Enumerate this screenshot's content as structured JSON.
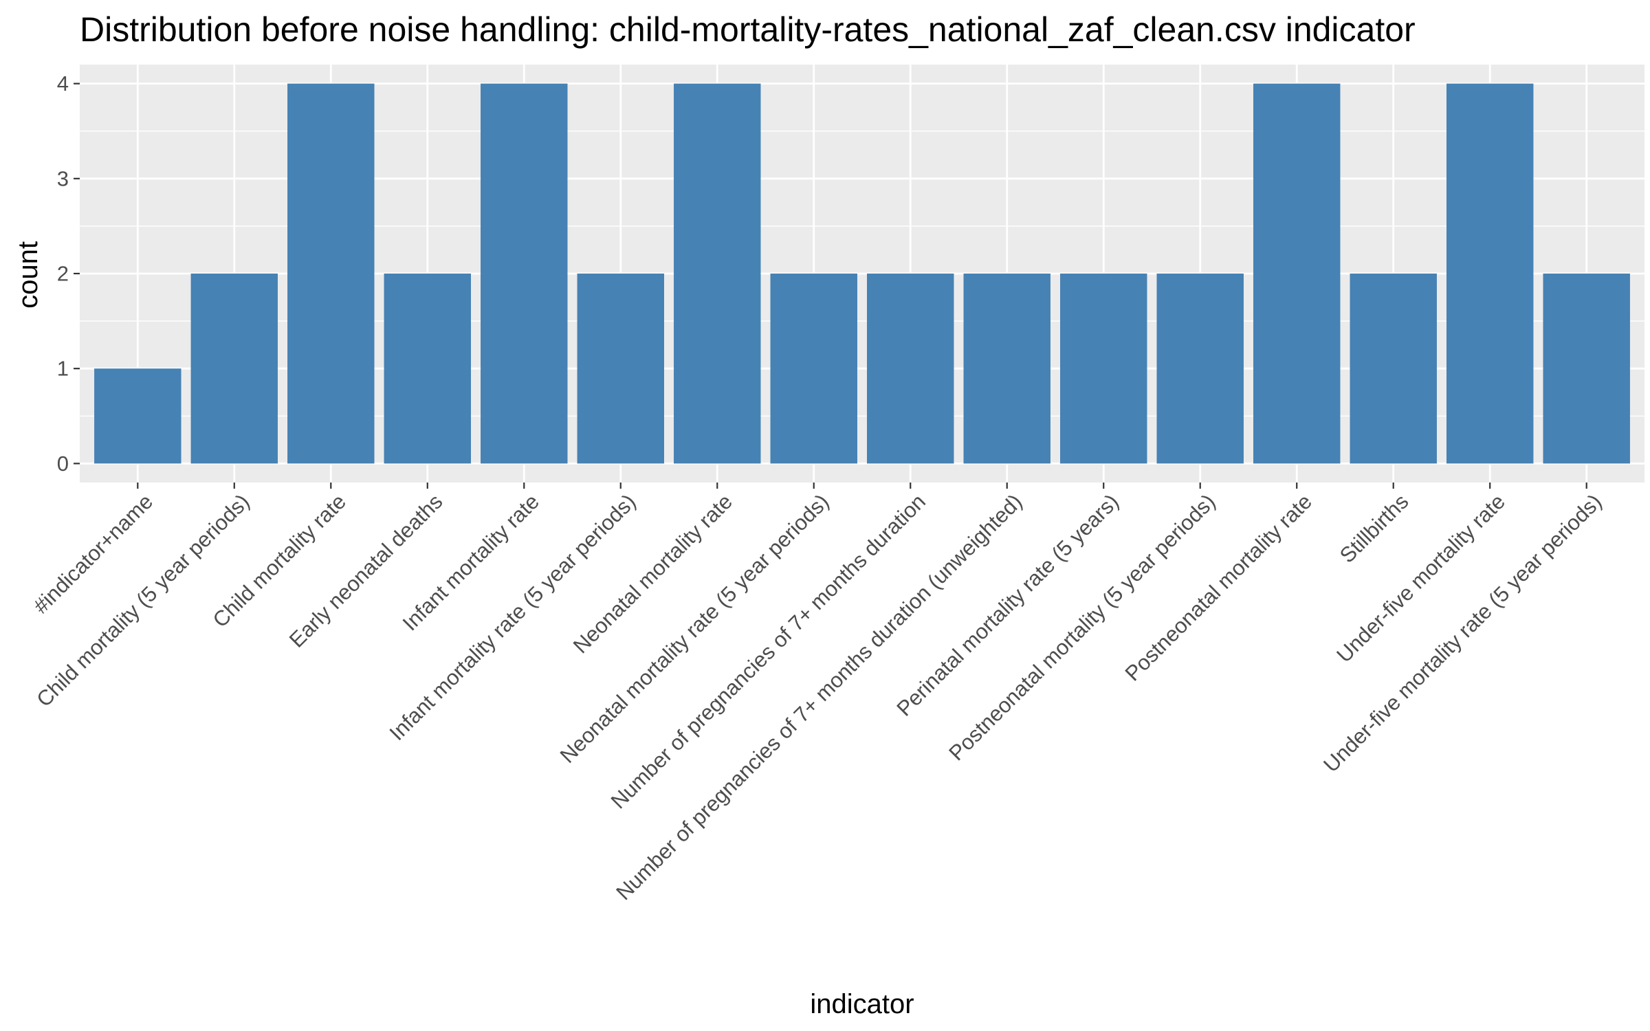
{
  "chart_data": {
    "type": "bar",
    "title": "Distribution before noise handling: child-mortality-rates_national_zaf_clean.csv indicator",
    "xlabel": "indicator",
    "ylabel": "count",
    "categories": [
      "#indicator+name",
      "Child mortality (5 year periods)",
      "Child mortality rate",
      "Early neonatal deaths",
      "Infant mortality rate",
      "Infant mortality rate (5 year periods)",
      "Neonatal mortality rate",
      "Neonatal mortality rate (5 year periods)",
      "Number of pregnancies of 7+ months duration",
      "Number of pregnancies of 7+ months duration (unweighted)",
      "Perinatal mortality rate (5 years)",
      "Postneonatal mortality (5 year periods)",
      "Postneonatal mortality rate",
      "Stillbirths",
      "Under-five mortality rate",
      "Under-five mortality rate (5 year periods)"
    ],
    "values": [
      1,
      2,
      4,
      2,
      4,
      2,
      4,
      2,
      2,
      2,
      2,
      2,
      4,
      2,
      4,
      2
    ],
    "ylim": [
      -0.2,
      4.2
    ],
    "yticks": [
      0,
      1,
      2,
      3,
      4
    ],
    "grid": true,
    "legend": "none",
    "colors": {
      "bar": "#4682B4",
      "panel": "#EBEBEB",
      "grid_major": "#FFFFFF",
      "tick_text": "#4D4D4D",
      "tick_mark": "#333333"
    }
  }
}
